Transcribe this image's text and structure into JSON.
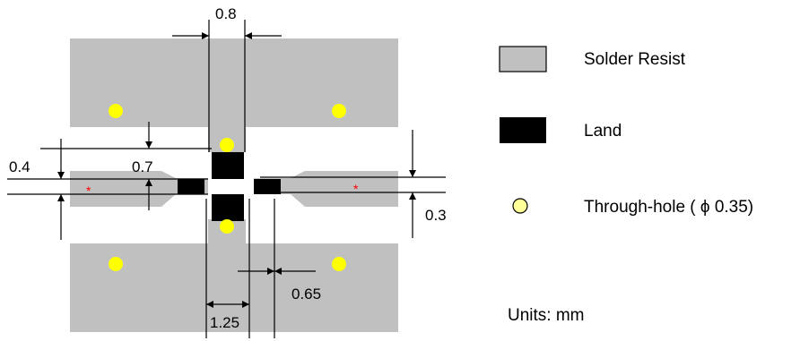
{
  "colors": {
    "solder_resist": "#c0c0c0",
    "land": "#000000",
    "through_hole": "#ffff00",
    "legend_hole_fill": "#ffff99",
    "marker": "#ff0000"
  },
  "dimensions": {
    "top_width": "0.8",
    "left_upper": "0.4",
    "left_inner": "0.7",
    "right_gap": "0.3",
    "bottom_right": "0.65",
    "bottom_width": "1.25"
  },
  "markers": {
    "left": "*",
    "right": "*"
  },
  "legend": {
    "solder_resist": {
      "label": "Solder Resist",
      "icon": "gray-rectangle"
    },
    "land": {
      "label": "Land",
      "icon": "black-rectangle"
    },
    "through_hole": {
      "label": "Through-hole ( ϕ 0.35)",
      "icon": "yellow-circle"
    }
  },
  "units": "Units: mm"
}
